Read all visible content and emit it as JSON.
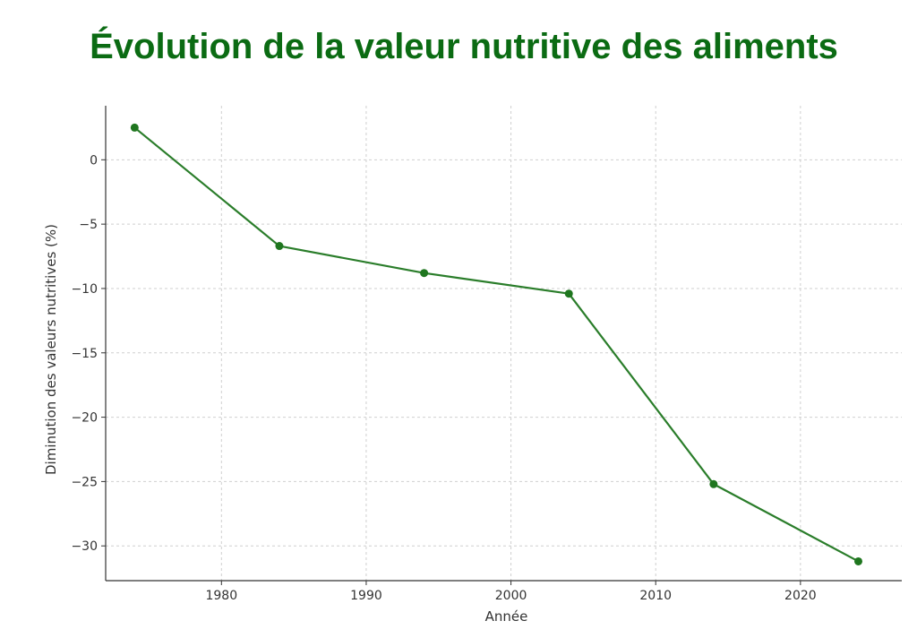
{
  "title": "Évolution de la valeur nutritive des aliments",
  "colors": {
    "title": "#0b6b13",
    "line": "#2a7d2a",
    "marker": "#1f761f"
  },
  "chart_data": {
    "type": "line",
    "title": "Évolution de la valeur nutritive des aliments",
    "xlabel": "Année",
    "ylabel": "Diminution des valeurs nutritives (%)",
    "xlim": [
      1972,
      2027
    ],
    "ylim": [
      -32.7,
      4.2
    ],
    "xticks": [
      1980,
      1990,
      2000,
      2010,
      2020
    ],
    "yticks": [
      0,
      -5,
      -10,
      -15,
      -20,
      -25,
      -30
    ],
    "xtick_labels": [
      "1980",
      "1990",
      "2000",
      "2010",
      "2020"
    ],
    "ytick_labels": [
      "0",
      "−5",
      "−10",
      "−15",
      "−20",
      "−25",
      "−30"
    ],
    "grid": true,
    "series": [
      {
        "x": [
          1974,
          1984,
          1994,
          2004,
          2014,
          2024
        ],
        "y": [
          2.5,
          -6.7,
          -8.8,
          -10.4,
          -25.2,
          -31.2
        ]
      }
    ]
  }
}
